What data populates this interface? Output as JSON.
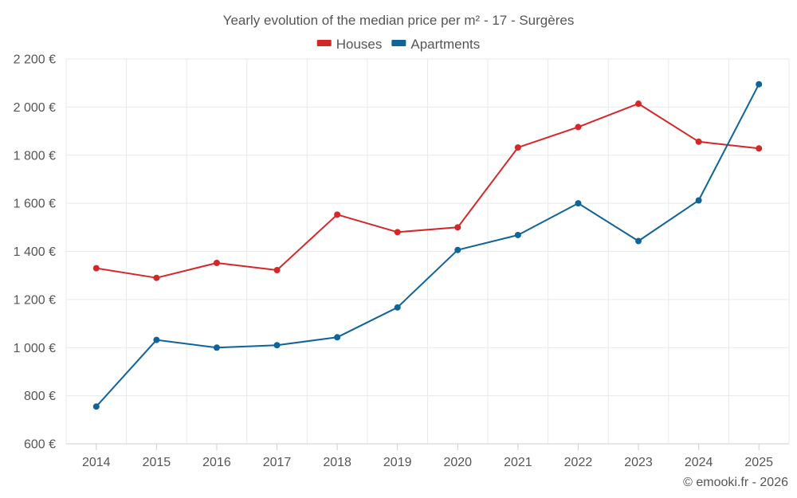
{
  "chart_data": {
    "type": "line",
    "title": "Yearly evolution of the median price per m² - 17 - Surgères",
    "categories": [
      "2014",
      "2015",
      "2016",
      "2017",
      "2018",
      "2019",
      "2020",
      "2021",
      "2022",
      "2023",
      "2024",
      "2025"
    ],
    "series": [
      {
        "name": "Houses",
        "color": "#d62728",
        "values": [
          1330,
          1290,
          1352,
          1322,
          1553,
          1480,
          1500,
          1832,
          1917,
          2014,
          1856,
          1828
        ]
      },
      {
        "name": "Apartments",
        "color": "#0f6498",
        "values": [
          755,
          1032,
          1000,
          1010,
          1043,
          1167,
          1406,
          1468,
          1600,
          1443,
          1612,
          2095
        ]
      }
    ],
    "ylim": [
      600,
      2200
    ],
    "yticks": [
      600,
      800,
      1000,
      1200,
      1400,
      1600,
      1800,
      2000,
      2200
    ],
    "ytick_labels": [
      "600 €",
      "800 €",
      "1 000 €",
      "1 200 €",
      "1 400 €",
      "1 600 €",
      "1 800 €",
      "2 000 €",
      "2 200 €"
    ],
    "xlabel": "",
    "ylabel": "",
    "grid": true,
    "legend_position": "top-center"
  },
  "credit": "© emooki.fr - 2026"
}
